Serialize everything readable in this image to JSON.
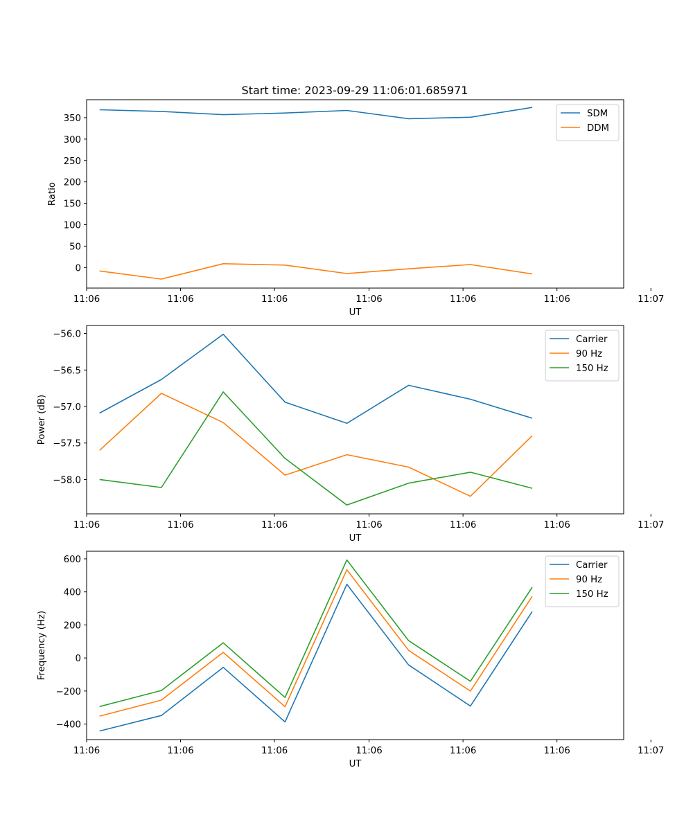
{
  "figure": {
    "title": "Start time: 2023-09-29 11:06:01.685971"
  },
  "chart_data": [
    {
      "type": "line",
      "title": "Start time: 2023-09-29 11:06:01.685971",
      "xlabel": "UT",
      "ylabel": "Ratio",
      "x_tick_labels": [
        "11:06",
        "11:06",
        "11:06",
        "11:06",
        "11:06",
        "11:06",
        "11:07"
      ],
      "y_ticks": [
        0,
        50,
        100,
        150,
        200,
        250,
        300,
        350
      ],
      "y_tick_labels": [
        "0",
        "50",
        "100",
        "150",
        "200",
        "250",
        "300",
        "350"
      ],
      "ylim": [
        -48,
        392
      ],
      "x_index": [
        1,
        2,
        3,
        4,
        5,
        6,
        7,
        8
      ],
      "xlim": [
        0.79,
        9.48
      ],
      "x_tick_index": [
        0.79,
        2.31,
        3.83,
        5.36,
        6.88,
        8.4,
        9.92
      ],
      "legend": "top-right",
      "grid": false,
      "series": [
        {
          "name": "SDM",
          "color": "#1f77b4",
          "values": [
            368.6,
            364.6,
            357.0,
            361.0,
            367.0,
            347.6,
            351.0,
            374.0
          ]
        },
        {
          "name": "DDM",
          "color": "#ff7f0e",
          "values": [
            -8.0,
            -27.0,
            9.0,
            5.7,
            -14.0,
            -3.0,
            7.0,
            -15.0
          ]
        }
      ]
    },
    {
      "type": "line",
      "xlabel": "UT",
      "ylabel": "Power (dB)",
      "x_tick_labels": [
        "11:06",
        "11:06",
        "11:06",
        "11:06",
        "11:06",
        "11:06",
        "11:07"
      ],
      "y_ticks": [
        -58.0,
        -57.5,
        -57.0,
        -56.5,
        -56.0
      ],
      "y_tick_labels": [
        "−58.0",
        "−57.5",
        "−57.0",
        "−56.5",
        "−56.0"
      ],
      "ylim": [
        -58.47,
        -55.89
      ],
      "x_index": [
        1,
        2,
        3,
        4,
        5,
        6,
        7,
        8
      ],
      "xlim": [
        0.79,
        9.48
      ],
      "x_tick_index": [
        0.79,
        2.31,
        3.83,
        5.36,
        6.88,
        8.4,
        9.92
      ],
      "legend": "top-right",
      "grid": false,
      "series": [
        {
          "name": "Carrier",
          "color": "#1f77b4",
          "values": [
            -57.09,
            -56.63,
            -56.01,
            -56.94,
            -57.23,
            -56.71,
            -56.9,
            -57.16
          ]
        },
        {
          "name": "90 Hz",
          "color": "#ff7f0e",
          "values": [
            -57.6,
            -56.82,
            -57.22,
            -57.94,
            -57.66,
            -57.83,
            -58.23,
            -57.4
          ]
        },
        {
          "name": "150 Hz",
          "color": "#2ca02c",
          "values": [
            -58.0,
            -58.11,
            -56.8,
            -57.71,
            -58.35,
            -58.05,
            -57.9,
            -58.12
          ]
        }
      ]
    },
    {
      "type": "line",
      "xlabel": "UT",
      "ylabel": "Frequency (Hz)",
      "x_tick_labels": [
        "11:06",
        "11:06",
        "11:06",
        "11:06",
        "11:06",
        "11:06",
        "11:07"
      ],
      "y_ticks": [
        -400,
        -200,
        0,
        200,
        400,
        600
      ],
      "y_tick_labels": [
        "−400",
        "−200",
        "0",
        "200",
        "400",
        "600"
      ],
      "ylim": [
        -494,
        646
      ],
      "x_index": [
        1,
        2,
        3,
        4,
        5,
        6,
        7,
        8
      ],
      "xlim": [
        0.79,
        9.48
      ],
      "x_tick_index": [
        0.79,
        2.31,
        3.83,
        5.36,
        6.88,
        8.4,
        9.92
      ],
      "legend": "top-right",
      "grid": false,
      "series": [
        {
          "name": "Carrier",
          "color": "#1f77b4",
          "values": [
            -442,
            -348,
            -57,
            -387,
            446,
            -42,
            -291,
            281
          ]
        },
        {
          "name": "90 Hz",
          "color": "#ff7f0e",
          "values": [
            -352,
            -255,
            34,
            -295,
            534,
            46,
            -200,
            373
          ]
        },
        {
          "name": "150 Hz",
          "color": "#2ca02c",
          "values": [
            -294,
            -197,
            92,
            -239,
            593,
            105,
            -141,
            428
          ]
        }
      ]
    }
  ]
}
